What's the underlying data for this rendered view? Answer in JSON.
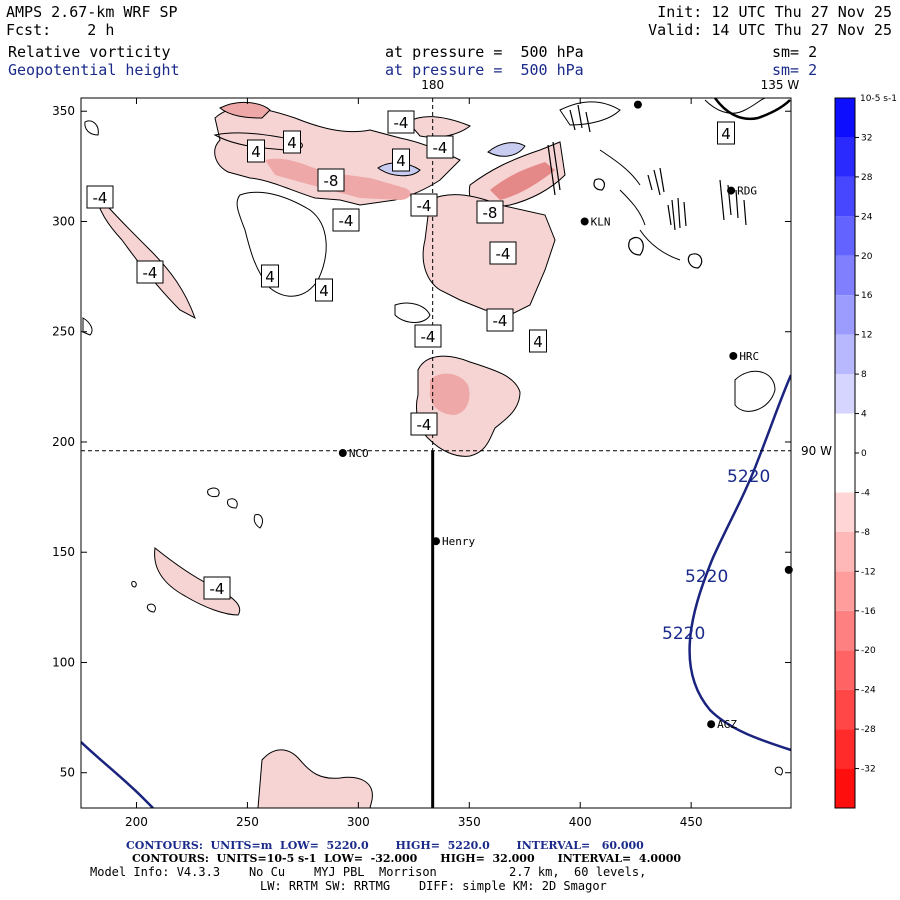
{
  "header": {
    "model": "AMPS 2.67-km WRF SP",
    "forecast": "Fcst:    2 h",
    "init": "Init: 12 UTC Thu 27 Nov 25",
    "valid": "Valid: 14 UTC Thu 27 Nov 25",
    "field1": "Relative vorticity",
    "field1_level": "at pressure =  500 hPa",
    "field1_sm": "sm= 2",
    "field2": "Geopotential height",
    "field2_level": "at pressure =  500 hPa",
    "field2_sm": "sm= 2"
  },
  "chart_data": {
    "type": "contour-map",
    "xlim": [
      175,
      495
    ],
    "ylim": [
      34,
      356
    ],
    "x_ticks": [
      200,
      250,
      300,
      350,
      400,
      450
    ],
    "y_ticks": [
      50,
      100,
      150,
      200,
      250,
      300,
      350
    ],
    "meridians": [
      {
        "label": "180",
        "x": 333.5
      },
      {
        "label": "135 W",
        "x": 490
      }
    ],
    "parallels": [
      {
        "label": "90 W",
        "y": 196
      }
    ],
    "cross_section_line": {
      "x": 333.5,
      "y_from": 34,
      "y_to": 196
    },
    "stations": [
      {
        "name": "NCO",
        "x": 293,
        "y": 195
      },
      {
        "name": "Henry",
        "x": 335,
        "y": 155
      },
      {
        "name": "KLN",
        "x": 402,
        "y": 300
      },
      {
        "name": "RDG",
        "x": 468,
        "y": 314
      },
      {
        "name": "HRC",
        "x": 469,
        "y": 239
      },
      {
        "name": "AGZ",
        "x": 459,
        "y": 72
      },
      {
        "name": "",
        "x": 494,
        "y": 142
      },
      {
        "name": "",
        "x": 426,
        "y": 353
      }
    ],
    "height_contour": {
      "value": 5220,
      "labels": [
        "5220",
        "5220",
        "5220"
      ]
    },
    "vorticity_labels": [
      "-4",
      "4",
      "4",
      "-4",
      "-4",
      "4",
      "-8",
      "-4",
      "-4",
      "-8",
      "-4",
      "4",
      "4",
      "-4",
      "-4",
      "4",
      "-4",
      "-4",
      "-4",
      "4"
    ],
    "colorbar": {
      "unit": "10-5 s-1",
      "levels": [
        32,
        28,
        24,
        20,
        16,
        12,
        8,
        4,
        0,
        -4,
        -8,
        -12,
        -16,
        -20,
        -24,
        -28,
        -32
      ],
      "range": [
        -36,
        36
      ]
    }
  },
  "footer": {
    "line1_a": "CONTOURS:  UNITS=m  LOW=  5220.0       HIGH=  5220.0       INTERVAL=   60.000",
    "line2": "CONTOURS:  UNITS=10-5 s-1  LOW=  -32.000      HIGH=  32.000      INTERVAL=  4.0000",
    "line3": "Model Info: V4.3.3    No Cu    MYJ PBL  Morrison          2.7 km,  60 levels,",
    "line4": "LW: RRTM SW: RRTMG    DIFF: simple KM: 2D Smagor"
  }
}
